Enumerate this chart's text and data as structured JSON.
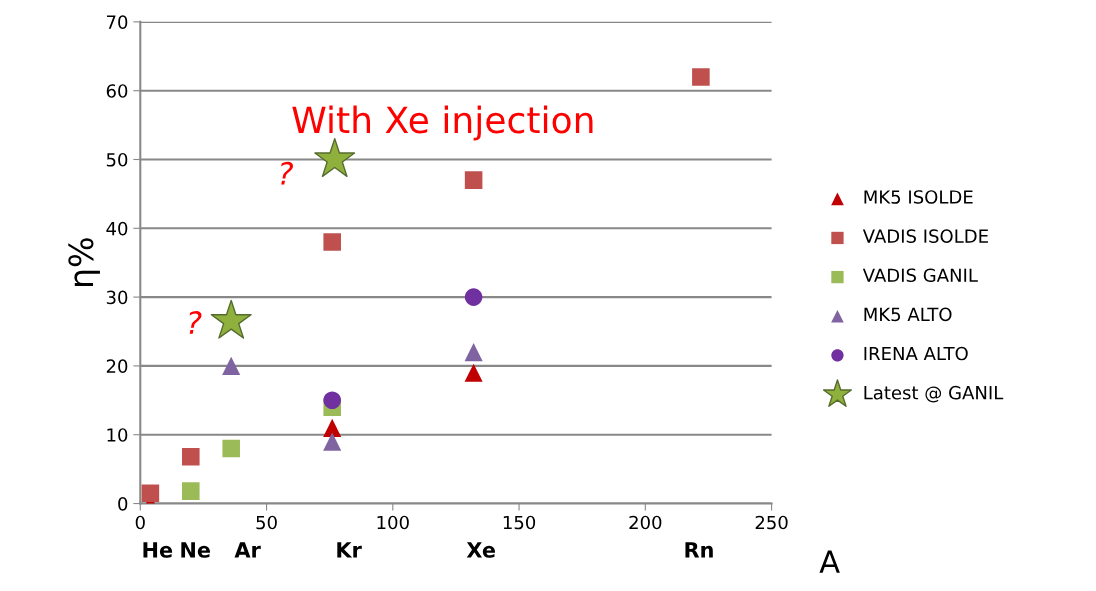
{
  "chart_data": {
    "type": "scatter",
    "xlabel": "A",
    "ylabel": "η%",
    "xlim": [
      0,
      250
    ],
    "xticks": [
      0,
      50,
      100,
      150,
      200,
      250
    ],
    "ylim": [
      0,
      70
    ],
    "yticks": [
      0,
      10,
      20,
      30,
      40,
      50,
      60,
      70
    ],
    "grid": "y",
    "legend": "right",
    "series": [
      {
        "name": "MK5 ISOLDE",
        "color": "#c00000",
        "marker": "triangle",
        "x": [
          4,
          76,
          132
        ],
        "values": [
          0,
          11,
          19
        ]
      },
      {
        "name": "VADIS ISOLDE",
        "color": "#c0504d",
        "marker": "square",
        "x": [
          4,
          20,
          76,
          132,
          222
        ],
        "values": [
          1.5,
          6.8,
          38,
          47,
          62
        ]
      },
      {
        "name": "VADIS GANIL",
        "color": "#9bbb59",
        "marker": "square",
        "x": [
          20,
          36,
          76
        ],
        "values": [
          1.8,
          8,
          14
        ]
      },
      {
        "name": "MK5 ALTO",
        "color": "#8064a2",
        "marker": "triangle",
        "x": [
          36,
          76,
          132
        ],
        "values": [
          20,
          9,
          22
        ]
      },
      {
        "name": "IRENA ALTO",
        "color": "#7030a0",
        "marker": "circle",
        "x": [
          76,
          132
        ],
        "values": [
          15,
          30
        ]
      },
      {
        "name": "Latest @ GANIL",
        "color": "#8fb03c",
        "marker": "star",
        "x": [
          36,
          77
        ],
        "values": [
          26.5,
          50
        ]
      }
    ],
    "annotations": [
      "With Xe injection",
      "?",
      "?",
      "He",
      "Ne",
      "Ar",
      "Kr",
      "Xe",
      "Rn"
    ]
  }
}
